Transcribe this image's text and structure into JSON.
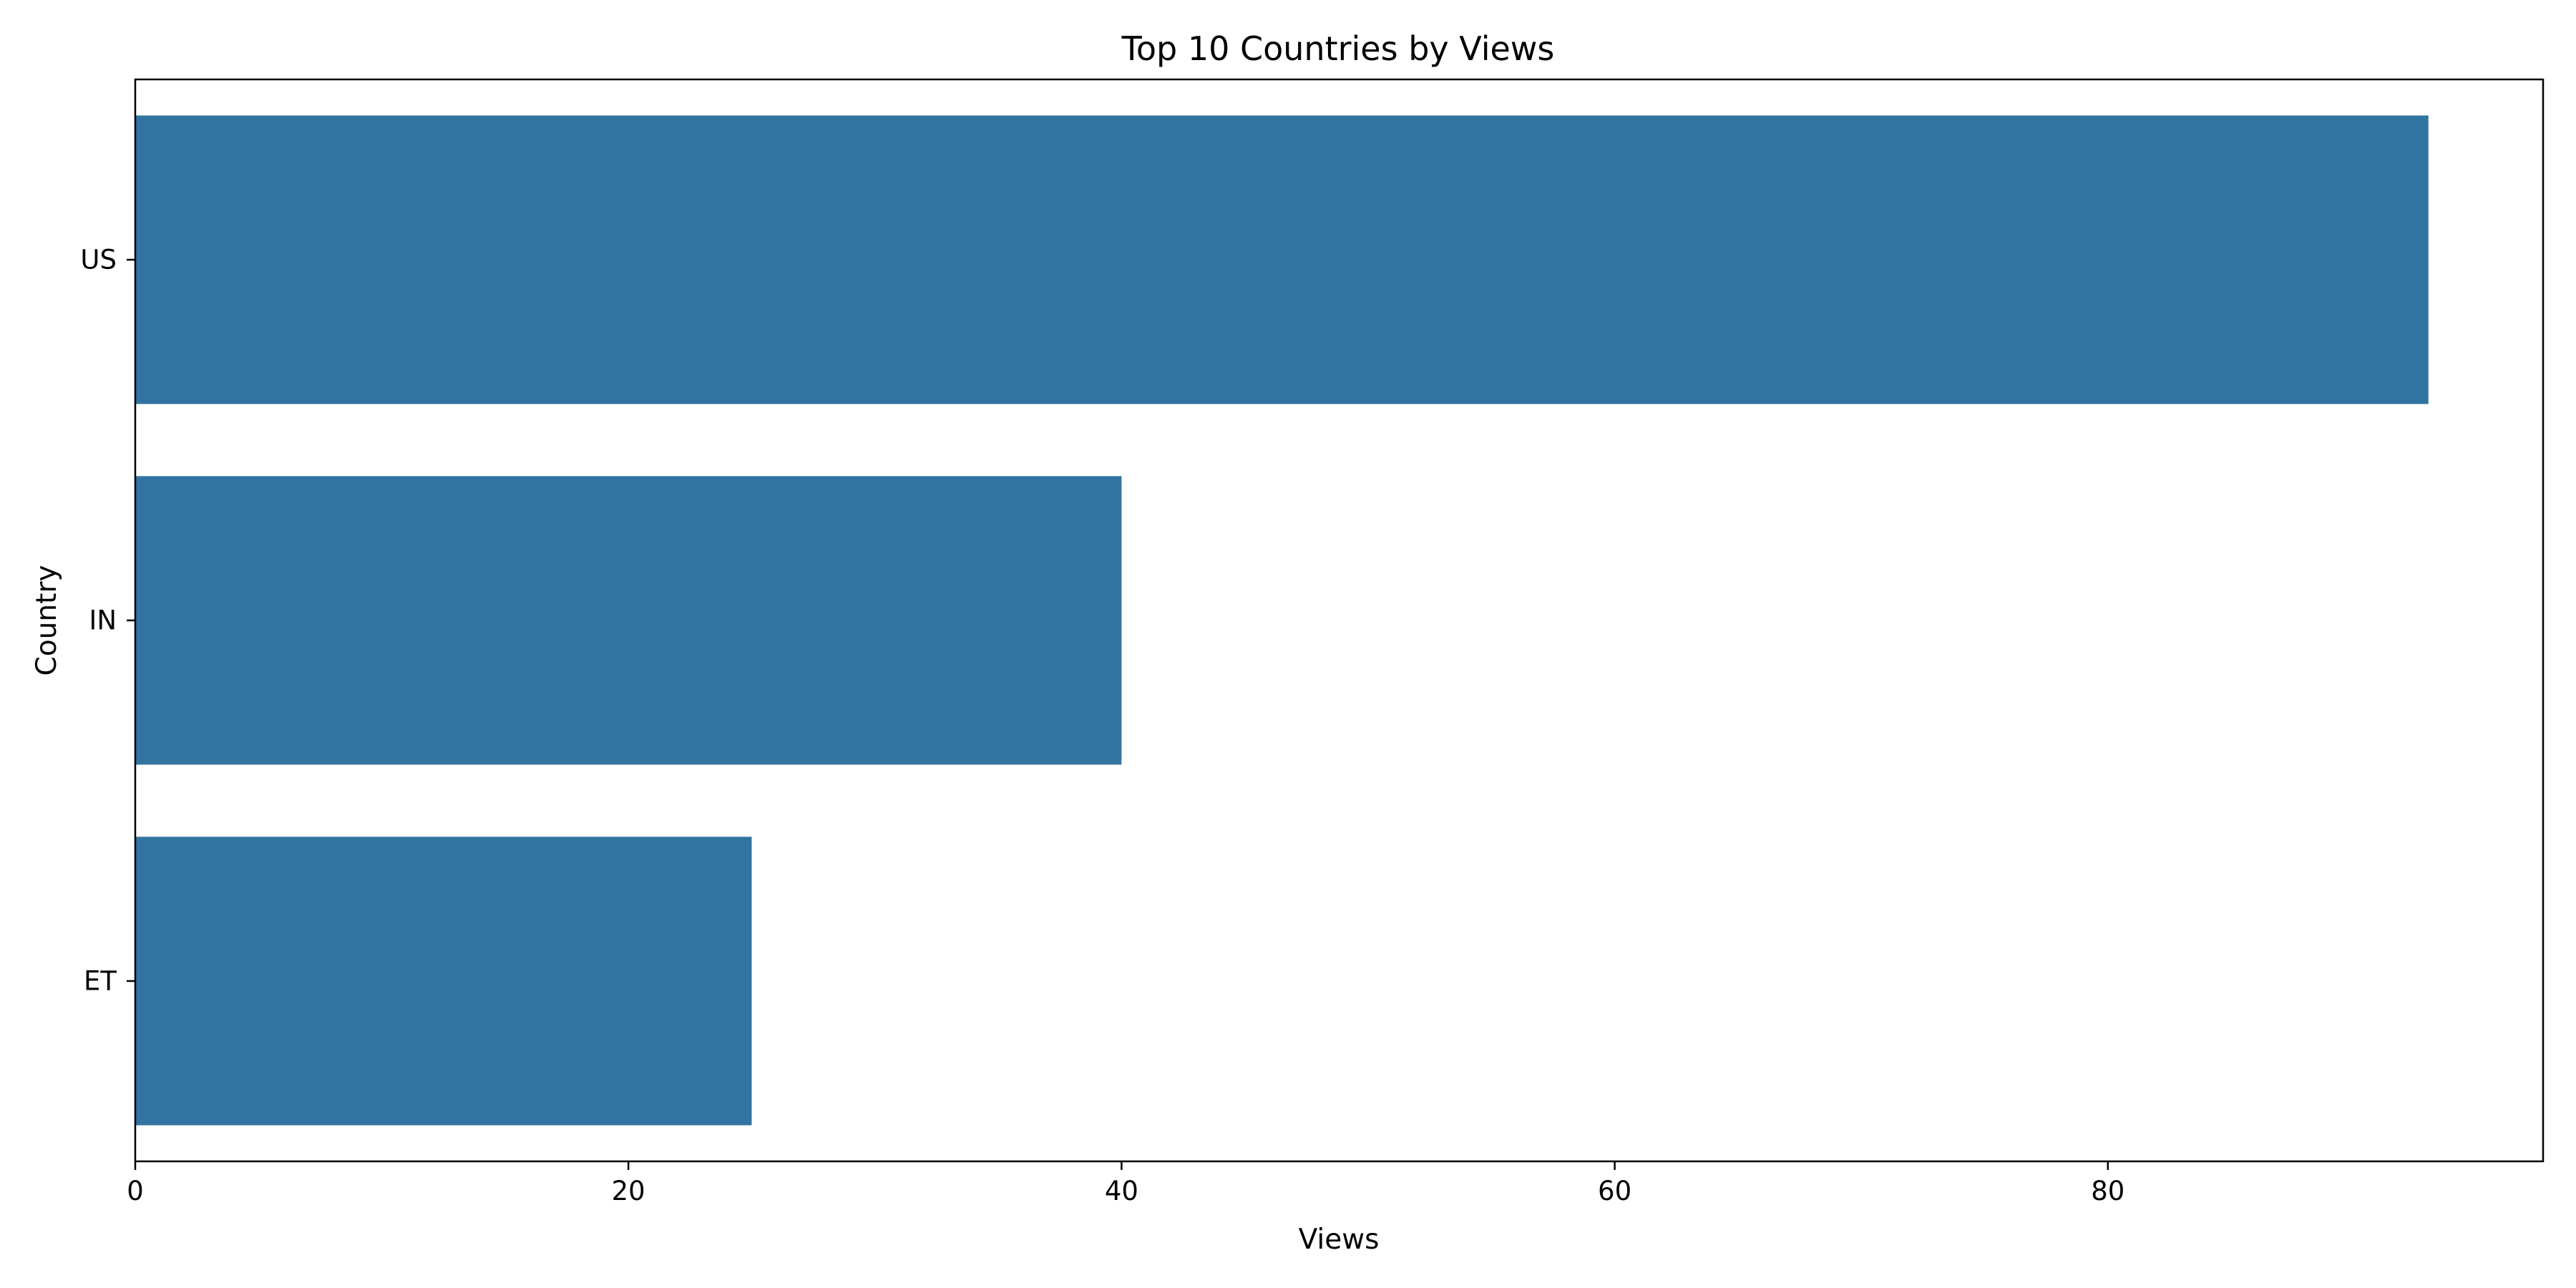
{
  "chart_data": {
    "type": "bar",
    "orientation": "horizontal",
    "title": "Top 10 Countries by Views",
    "xlabel": "Views",
    "ylabel": "Country",
    "categories": [
      "US",
      "IN",
      "ET"
    ],
    "values": [
      93,
      40,
      25
    ],
    "xlim": [
      0,
      97.65
    ],
    "xticks": [
      0,
      20,
      40,
      60,
      80
    ],
    "bar_color": "#3274a1",
    "grid": false,
    "legend": "none"
  }
}
